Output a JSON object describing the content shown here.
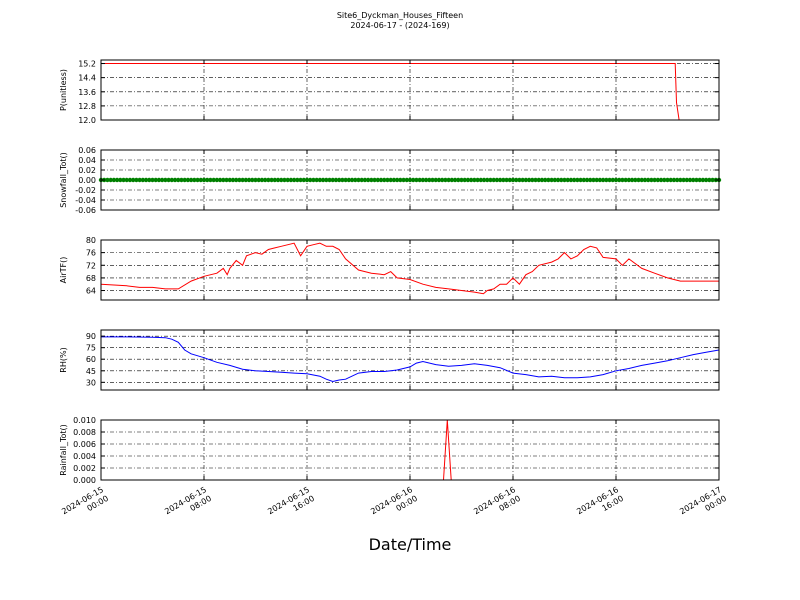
{
  "figure": {
    "title": "Site6_Dyckman_Houses_Fifteen",
    "subtitle": "2024-06-17 - (2024-169)",
    "xlabel": "Date/Time"
  },
  "chart_data": [
    {
      "type": "line",
      "ylabel": "P(unitless)",
      "color": "#ff0000",
      "ylim": [
        12.0,
        15.4
      ],
      "yticks": [
        "15.2",
        "14.4",
        "13.6",
        "12.8",
        "12.0"
      ],
      "ytick_values": [
        15.2,
        14.4,
        13.6,
        12.8,
        12.0
      ],
      "grid": true,
      "series": [
        {
          "x": [
            0,
            44.6,
            44.7,
            44.9,
            45.0,
            48
          ],
          "values": [
            15.2,
            15.2,
            13.0,
            12.0,
            12.0,
            12.0
          ]
        }
      ]
    },
    {
      "type": "scatter",
      "ylabel": "Snowfall_Tot()",
      "color": "#008000",
      "ylim": [
        -0.06,
        0.06
      ],
      "yticks": [
        "0.06",
        "0.04",
        "0.02",
        "0.00",
        "-0.02",
        "-0.04",
        "-0.06"
      ],
      "ytick_values": [
        0.06,
        0.04,
        0.02,
        0.0,
        -0.02,
        -0.04,
        -0.06
      ],
      "grid": true,
      "series": [
        {
          "x_range": [
            0,
            48
          ],
          "x_step": 0.25,
          "value": 0.0
        }
      ]
    },
    {
      "type": "line",
      "ylabel": "AirTF()",
      "color": "#ff0000",
      "ylim": [
        61,
        80
      ],
      "yticks": [
        "80",
        "76",
        "72",
        "68",
        "64"
      ],
      "ytick_values": [
        80,
        76,
        72,
        68,
        64
      ],
      "grid": true,
      "series": [
        {
          "x": [
            0,
            2,
            3,
            4,
            5,
            6,
            7,
            8,
            9,
            9.5,
            9.8,
            10,
            10.5,
            11,
            11.3,
            12,
            12.5,
            13,
            13.5,
            14,
            15,
            15.5,
            16,
            16.5,
            17,
            17.5,
            18,
            18.5,
            19,
            20,
            21,
            22,
            22.5,
            23,
            24,
            25,
            26,
            27,
            28,
            29,
            29.7,
            30,
            30.5,
            31,
            31.5,
            32,
            32.5,
            33,
            33.5,
            34,
            35,
            35.5,
            36,
            36.5,
            37,
            37.5,
            38,
            38.5,
            39,
            40,
            40.5,
            41,
            42,
            43,
            44,
            45,
            46,
            47,
            48
          ],
          "values": [
            66,
            65.5,
            65,
            65,
            64.5,
            64.5,
            67,
            68.5,
            69.5,
            71,
            69,
            71,
            73.5,
            72,
            75,
            76,
            75.5,
            77,
            77.5,
            78,
            79,
            75,
            78,
            78.5,
            79,
            78,
            78,
            77,
            74,
            70.5,
            69.5,
            69,
            70,
            68,
            67.5,
            66,
            65,
            64.5,
            64,
            63.5,
            63,
            64,
            64.5,
            66,
            66,
            68,
            66,
            69,
            70,
            72,
            73,
            74,
            76,
            74,
            75,
            77,
            78,
            77.5,
            74.5,
            74,
            72,
            74,
            71,
            69.5,
            68,
            67,
            67,
            67,
            67
          ]
        }
      ]
    },
    {
      "type": "line",
      "ylabel": "RH(%)",
      "color": "#0000ff",
      "ylim": [
        20,
        98
      ],
      "yticks": [
        "90",
        "75",
        "60",
        "45",
        "30"
      ],
      "ytick_values": [
        90,
        75,
        60,
        45,
        30
      ],
      "grid": true,
      "series": [
        {
          "x": [
            0,
            2,
            4,
            5,
            5.5,
            6,
            6.5,
            7,
            8,
            9,
            10,
            11,
            12,
            13,
            14,
            15,
            16,
            17,
            17.5,
            18,
            18.5,
            19,
            20,
            21,
            22,
            23,
            24,
            24.5,
            25,
            26,
            27,
            28,
            29,
            30,
            31,
            32,
            33,
            34,
            35,
            36,
            37,
            38,
            39,
            40,
            41,
            42,
            43,
            44,
            45,
            46,
            47,
            48
          ],
          "values": [
            89,
            89,
            88.5,
            88,
            86,
            82,
            72,
            67,
            62,
            56,
            52,
            47,
            45,
            44,
            43,
            42,
            41,
            38,
            34,
            31,
            33,
            34,
            42,
            44,
            44,
            46,
            50,
            55,
            57,
            53,
            51,
            52,
            54,
            52,
            49,
            42,
            40,
            37,
            38,
            36,
            36,
            37,
            40,
            45,
            48,
            52,
            55,
            58,
            62,
            66,
            69,
            72
          ]
        }
      ]
    },
    {
      "type": "line",
      "ylabel": "Rainfall_Tot()",
      "color": "#ff0000",
      "ylim": [
        0.0,
        0.01
      ],
      "yticks": [
        "0.010",
        "0.008",
        "0.006",
        "0.004",
        "0.002",
        "0.000"
      ],
      "ytick_values": [
        0.01,
        0.008,
        0.006,
        0.004,
        0.002,
        0.0
      ],
      "grid": true,
      "series": [
        {
          "x": [
            0,
            26.6,
            26.9,
            27.2,
            48
          ],
          "values": [
            0,
            0,
            0.01,
            0,
            0
          ]
        }
      ]
    }
  ],
  "x_axis": {
    "range": [
      0,
      48
    ],
    "tick_values": [
      0,
      8,
      16,
      24,
      32,
      40,
      48
    ],
    "tick_labels": [
      [
        "2024-06-15",
        "00:00"
      ],
      [
        "2024-06-15",
        "08:00"
      ],
      [
        "2024-06-15",
        "16:00"
      ],
      [
        "2024-06-16",
        "00:00"
      ],
      [
        "2024-06-16",
        "08:00"
      ],
      [
        "2024-06-16",
        "16:00"
      ],
      [
        "2024-06-17",
        "00:00"
      ]
    ]
  }
}
